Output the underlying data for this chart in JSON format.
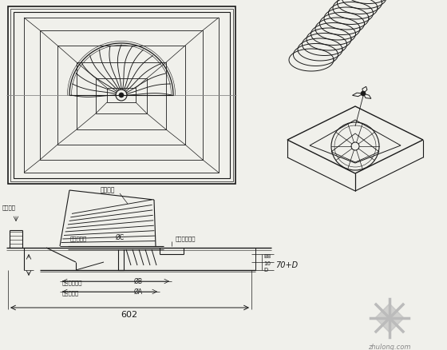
{
  "bg_color": "#f0f0eb",
  "line_color": "#1a1a1a",
  "gray_line": "#888888",
  "logo_color": "#bbbbbb",
  "labels": {
    "flexible_duct": "伸缩软管",
    "ceiling_frame": "吊顶搁栅",
    "fan_top": "蒸发器顶部",
    "clamp": "软管抱箍卡扣",
    "dim_602": "602",
    "dim_70D": "70+D",
    "dim_B8": "B8",
    "dim_10": "10",
    "dim_D": "D",
    "max_blade": "最大蒸叶尺寸",
    "outlet_size": "出风口尺寸",
    "dia_C": "ØC",
    "dia_B": "ØB",
    "dia_A": "ØA",
    "logo_text": "zhulong.com"
  }
}
